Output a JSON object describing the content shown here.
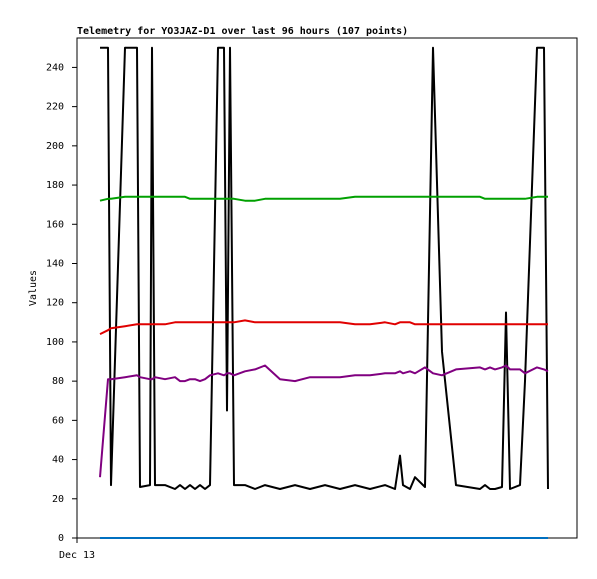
{
  "chart_data": {
    "type": "line",
    "title": "Telemetry for YO3JAZ-D1 over last 96 hours (107 points)",
    "y_label": "Values",
    "x": [
      4.6,
      6.2,
      6.8,
      9.6,
      12,
      12.6,
      14.6,
      15,
      15.6,
      17.6,
      19.6,
      20.6,
      21.6,
      22.6,
      23.6,
      24.6,
      25.6,
      26.6,
      28.2,
      29.4,
      30,
      30.6,
      31.4,
      33.6,
      35.6,
      37.6,
      40.6,
      43.6,
      46.6,
      49.6,
      52.6,
      55.6,
      58.6,
      61.6,
      63.6,
      64.6,
      65.2,
      66.6,
      67.6,
      69.6,
      71.2,
      73,
      75.8,
      80.6,
      81.6,
      82.6,
      83.6,
      85,
      85.8,
      86.6,
      88.6,
      89.6,
      92,
      93.4,
      94.2
    ],
    "xlim": [
      0,
      100
    ],
    "xticks": [
      {
        "value": 0,
        "label": "Dec 13"
      }
    ],
    "ylim": [
      0,
      255
    ],
    "yticks": [
      0,
      20,
      40,
      60,
      80,
      100,
      120,
      140,
      160,
      180,
      200,
      220,
      240
    ],
    "grid": false,
    "series": [
      {
        "color": "#000000",
        "values": [
          250,
          250,
          27,
          250,
          250,
          26,
          27,
          250,
          27,
          27,
          25,
          27,
          25,
          27,
          25,
          27,
          25,
          27,
          250,
          250,
          65,
          250,
          27,
          27,
          25,
          27,
          25,
          27,
          25,
          27,
          25,
          27,
          25,
          27,
          25,
          42,
          27,
          25,
          31,
          26,
          250,
          95,
          27,
          25,
          27,
          25,
          25,
          26,
          115,
          25,
          27,
          80,
          250,
          250,
          25
        ]
      },
      {
        "color": "#00a000",
        "values": [
          172,
          173,
          173,
          174,
          174,
          174,
          174,
          174,
          174,
          174,
          174,
          174,
          174,
          173,
          173,
          173,
          173,
          173,
          173,
          173,
          173,
          173,
          173,
          172,
          172,
          173,
          173,
          173,
          173,
          173,
          173,
          174,
          174,
          174,
          174,
          174,
          174,
          174,
          174,
          174,
          174,
          174,
          174,
          174,
          173,
          173,
          173,
          173,
          173,
          173,
          173,
          173,
          174,
          174,
          174
        ]
      },
      {
        "color": "#e00000",
        "values": [
          104,
          106,
          107,
          108,
          109,
          109,
          109,
          109,
          109,
          109,
          110,
          110,
          110,
          110,
          110,
          110,
          110,
          110,
          110,
          110,
          110,
          110,
          110,
          111,
          110,
          110,
          110,
          110,
          110,
          110,
          110,
          109,
          109,
          110,
          109,
          110,
          110,
          110,
          109,
          109,
          109,
          109,
          109,
          109,
          109,
          109,
          109,
          109,
          109,
          109,
          109,
          109,
          109,
          109,
          109
        ]
      },
      {
        "color": "#800080",
        "values": [
          31,
          81,
          81,
          82,
          83,
          82,
          81,
          81,
          82,
          81,
          82,
          80,
          80,
          81,
          81,
          80,
          81,
          83,
          84,
          83,
          84,
          84,
          83,
          85,
          86,
          88,
          81,
          80,
          82,
          82,
          82,
          83,
          83,
          84,
          84,
          85,
          84,
          85,
          84,
          87,
          84,
          83,
          86,
          87,
          86,
          87,
          86,
          87,
          88,
          86,
          86,
          84,
          87,
          86,
          85
        ]
      },
      {
        "color": "#0070c0",
        "values": [
          0,
          0,
          0,
          0,
          0,
          0,
          0,
          0,
          0,
          0,
          0,
          0,
          0,
          0,
          0,
          0,
          0,
          0,
          0,
          0,
          0,
          0,
          0,
          0,
          0,
          0,
          0,
          0,
          0,
          0,
          0,
          0,
          0,
          0,
          0,
          0,
          0,
          0,
          0,
          0,
          0,
          0,
          0,
          0,
          0,
          0,
          0,
          0,
          0,
          0,
          0,
          0,
          0,
          0,
          0
        ]
      }
    ]
  }
}
